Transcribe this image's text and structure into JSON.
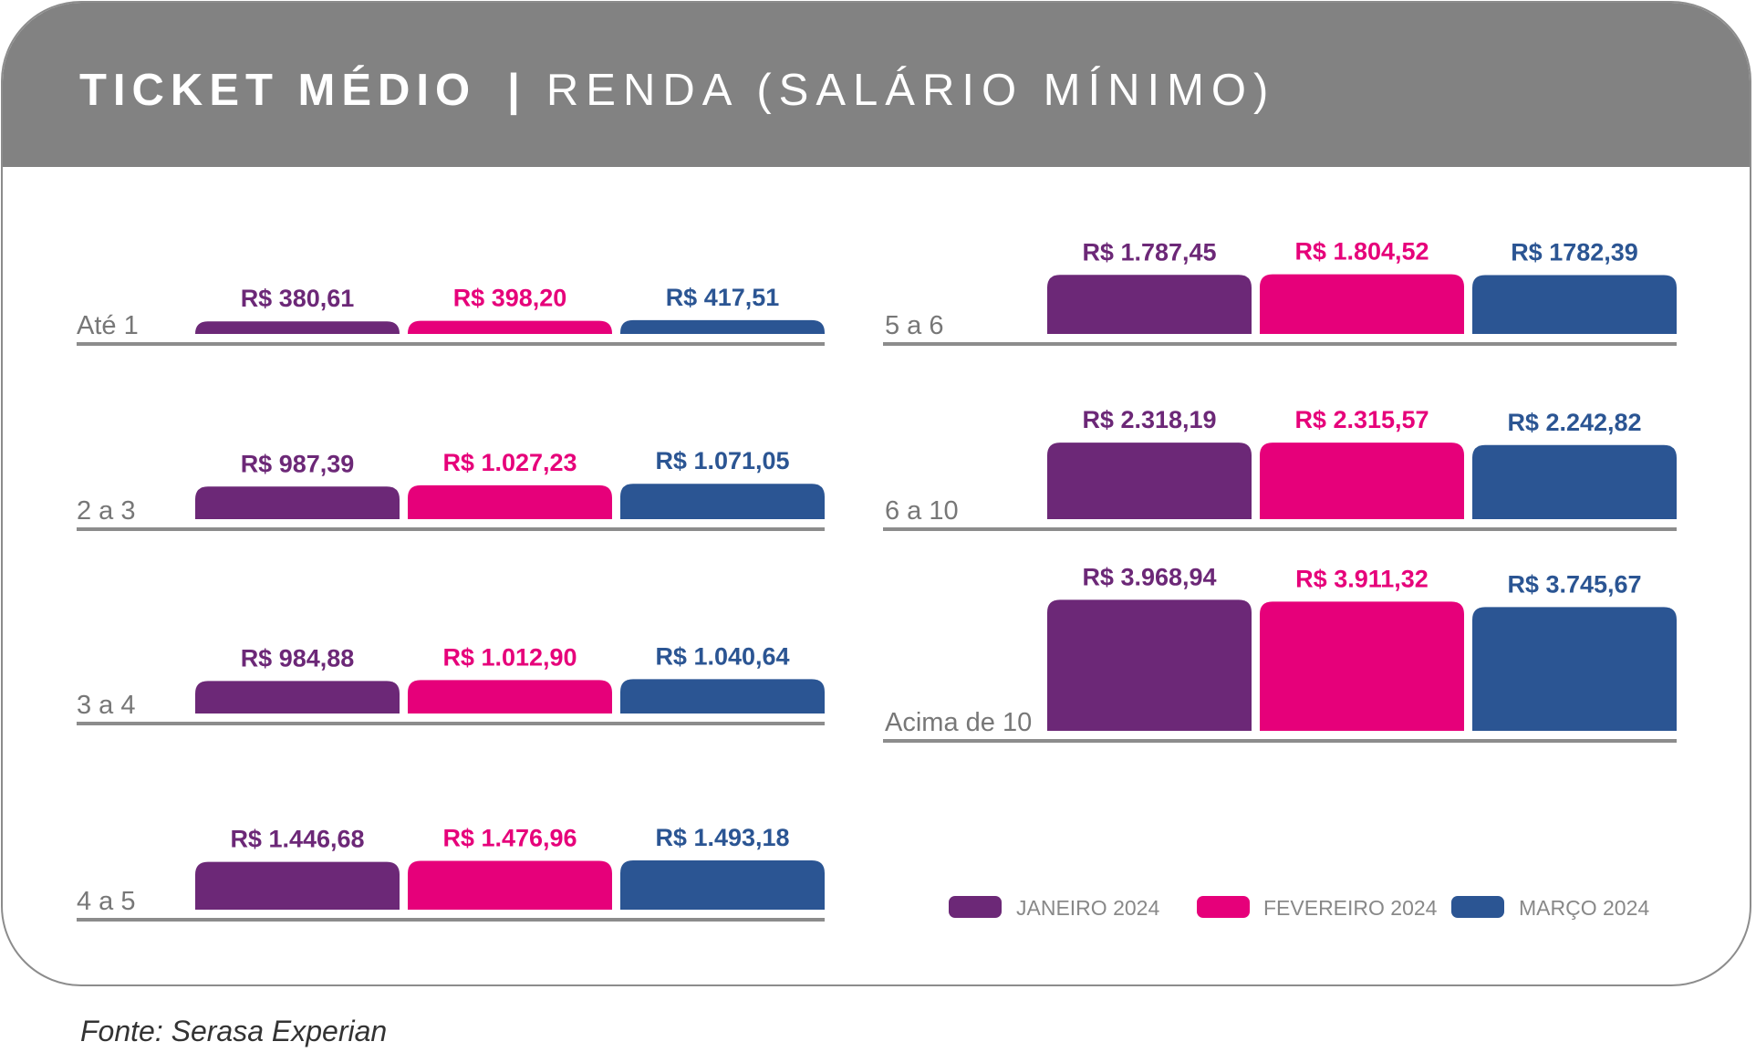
{
  "title": {
    "main": "TICKET MÉDIO",
    "separator": "|",
    "sub": "RENDA (SALÁRIO MÍNIMO)"
  },
  "source": "Fonte: Serasa Experian",
  "colors": {
    "janeiro": "#6c2877",
    "fevereiro": "#e6007a",
    "marco": "#2b5593",
    "header": "#828282",
    "baseline": "#8c8c8c",
    "category_label": "#777777",
    "legend_text": "#888888"
  },
  "chart_data": {
    "type": "bar",
    "title": "TICKET MÉDIO | RENDA (SALÁRIO MÍNIMO)",
    "layout": "small-multiples",
    "legend_position": "bottom-right",
    "series": [
      {
        "name": "JANEIRO 2024",
        "color": "#6c2877"
      },
      {
        "name": "FEVEREIRO 2024",
        "color": "#e6007a"
      },
      {
        "name": "MARÇO 2024",
        "color": "#2b5593"
      }
    ],
    "groups": [
      {
        "category": "Até 1",
        "values": [
          380.61,
          398.2,
          417.51
        ],
        "labels": [
          "R$ 380,61",
          "R$ 398,20",
          "R$ 417,51"
        ]
      },
      {
        "category": "2 a 3",
        "values": [
          987.39,
          1027.23,
          1071.05
        ],
        "labels": [
          "R$ 987,39",
          "R$ 1.027,23",
          "R$ 1.071,05"
        ]
      },
      {
        "category": "3 a 4",
        "values": [
          984.88,
          1012.9,
          1040.64
        ],
        "labels": [
          "R$ 984,88",
          "R$ 1.012,90",
          "R$ 1.040,64"
        ]
      },
      {
        "category": "4 a 5",
        "values": [
          1446.68,
          1476.96,
          1493.18
        ],
        "labels": [
          "R$ 1.446,68",
          "R$ 1.476,96",
          "R$ 1.493,18"
        ]
      },
      {
        "category": "5 a 6",
        "values": [
          1787.45,
          1804.52,
          1782.39
        ],
        "labels": [
          "R$ 1.787,45",
          "R$ 1.804,52",
          "R$ 1782,39"
        ]
      },
      {
        "category": "6 a 10",
        "values": [
          2318.19,
          2315.57,
          2242.82
        ],
        "labels": [
          "R$ 2.318,19",
          "R$ 2.315,57",
          "R$ 2.242,82"
        ]
      },
      {
        "category": "Acima de 10",
        "values": [
          3968.94,
          3911.32,
          3745.67
        ],
        "labels": [
          "R$ 3.968,94",
          "R$ 3.911,32",
          "R$ 3.745,67"
        ]
      }
    ]
  }
}
